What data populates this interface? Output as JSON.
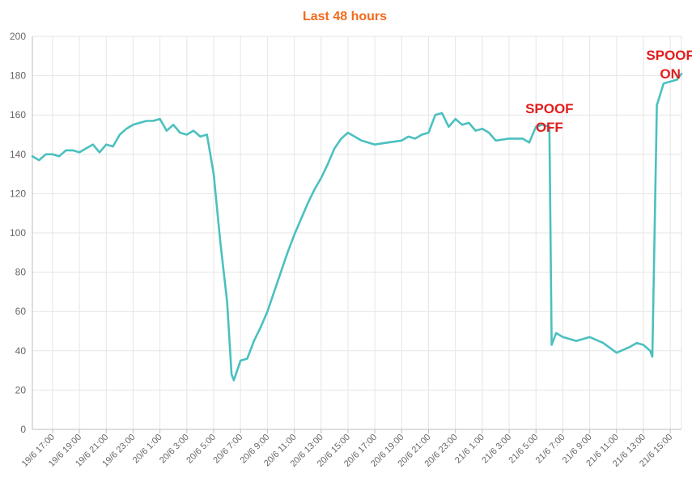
{
  "colors": {
    "title": "#f26b1d",
    "line": "#4bc0c0",
    "grid": "#e6e6e6",
    "axis": "#bdbdbd",
    "annotation": "#e31d1d"
  },
  "chart_data": {
    "type": "line",
    "title": "Last 48 hours",
    "xlabel": "",
    "ylabel": "",
    "ylim": [
      0,
      200
    ],
    "yticks": [
      0,
      20,
      40,
      60,
      80,
      100,
      120,
      140,
      160,
      180,
      200
    ],
    "grid": true,
    "legend": "none",
    "xlim": [
      "19/6 15:30",
      "21/6 15:50"
    ],
    "xtick_labels": [
      "19/6 17:00",
      "19/6 19:00",
      "19/6 21:00",
      "19/6 23:00",
      "20/6 1:00",
      "20/6 3:00",
      "20/6 5:00",
      "20/6 7:00",
      "20/6 9:00",
      "20/6 11:00",
      "20/6 13:00",
      "20/6 15:00",
      "20/6 17:00",
      "20/6 19:00",
      "20/6 21:00",
      "20/6 23:00",
      "21/6 1:00",
      "21/6 3:00",
      "21/6 5:00",
      "21/6 7:00",
      "21/6 9:00",
      "21/6 11:00",
      "21/6 13:00",
      "21/6 15:00"
    ],
    "series": [
      {
        "x": [
          "19/6 15:30",
          "19/6 16:00",
          "19/6 16:30",
          "19/6 17:00",
          "19/6 17:30",
          "19/6 18:00",
          "19/6 18:30",
          "19/6 19:00",
          "19/6 19:30",
          "19/6 20:00",
          "19/6 20:30",
          "19/6 21:00",
          "19/6 21:30",
          "19/6 22:00",
          "19/6 22:30",
          "19/6 23:00",
          "19/6 23:30",
          "20/6 0:00",
          "20/6 0:30",
          "20/6 1:00",
          "20/6 1:30",
          "20/6 2:00",
          "20/6 2:30",
          "20/6 3:00",
          "20/6 3:30",
          "20/6 4:00",
          "20/6 4:30",
          "20/6 5:00",
          "20/6 5:30",
          "20/6 6:00",
          "20/6 6:20",
          "20/6 6:30",
          "20/6 7:00",
          "20/6 7:30",
          "20/6 8:00",
          "20/6 8:30",
          "20/6 9:00",
          "20/6 9:30",
          "20/6 10:00",
          "20/6 10:30",
          "20/6 11:00",
          "20/6 11:30",
          "20/6 12:00",
          "20/6 12:30",
          "20/6 13:00",
          "20/6 13:30",
          "20/6 14:00",
          "20/6 14:30",
          "20/6 15:00",
          "20/6 15:30",
          "20/6 16:00",
          "20/6 17:00",
          "20/6 18:00",
          "20/6 19:00",
          "20/6 19:30",
          "20/6 20:00",
          "20/6 20:30",
          "20/6 21:00",
          "20/6 21:30",
          "20/6 22:00",
          "20/6 22:30",
          "20/6 23:00",
          "20/6 23:30",
          "21/6 0:00",
          "21/6 0:30",
          "21/6 1:00",
          "21/6 1:30",
          "21/6 2:00",
          "21/6 3:00",
          "21/6 4:00",
          "21/6 4:30",
          "21/6 5:00",
          "21/6 5:30",
          "21/6 6:00",
          "21/6 6:10",
          "21/6 6:30",
          "21/6 7:00",
          "21/6 8:00",
          "21/6 8:30",
          "21/6 9:00",
          "21/6 10:00",
          "21/6 11:00",
          "21/6 12:00",
          "21/6 12:30",
          "21/6 13:00",
          "21/6 13:30",
          "21/6 13:40",
          "21/6 14:00",
          "21/6 14:30",
          "21/6 15:00",
          "21/6 15:30",
          "21/6 15:50"
        ],
        "values": [
          139,
          137,
          140,
          140,
          139,
          142,
          142,
          141,
          143,
          145,
          141,
          145,
          144,
          150,
          153,
          155,
          156,
          157,
          157,
          158,
          152,
          155,
          151,
          150,
          152,
          149,
          150,
          130,
          95,
          65,
          28,
          25,
          35,
          36,
          45,
          52,
          60,
          70,
          80,
          90,
          99,
          107,
          115,
          122,
          128,
          135,
          143,
          148,
          151,
          149,
          147,
          145,
          146,
          147,
          149,
          148,
          150,
          151,
          160,
          161,
          154,
          158,
          155,
          156,
          152,
          153,
          151,
          147,
          148,
          148,
          146,
          154,
          155,
          154,
          43,
          49,
          47,
          45,
          46,
          47,
          44,
          39,
          42,
          44,
          43,
          40,
          37,
          165,
          176,
          177,
          178,
          181
        ]
      }
    ],
    "annotations": [
      {
        "lines": [
          "SPOOF",
          "OFF"
        ],
        "x": "21/6 6:00",
        "y": 161
      },
      {
        "lines": [
          "SPOOF",
          "ON"
        ],
        "x": "21/6 15:00",
        "y": 188
      }
    ]
  }
}
